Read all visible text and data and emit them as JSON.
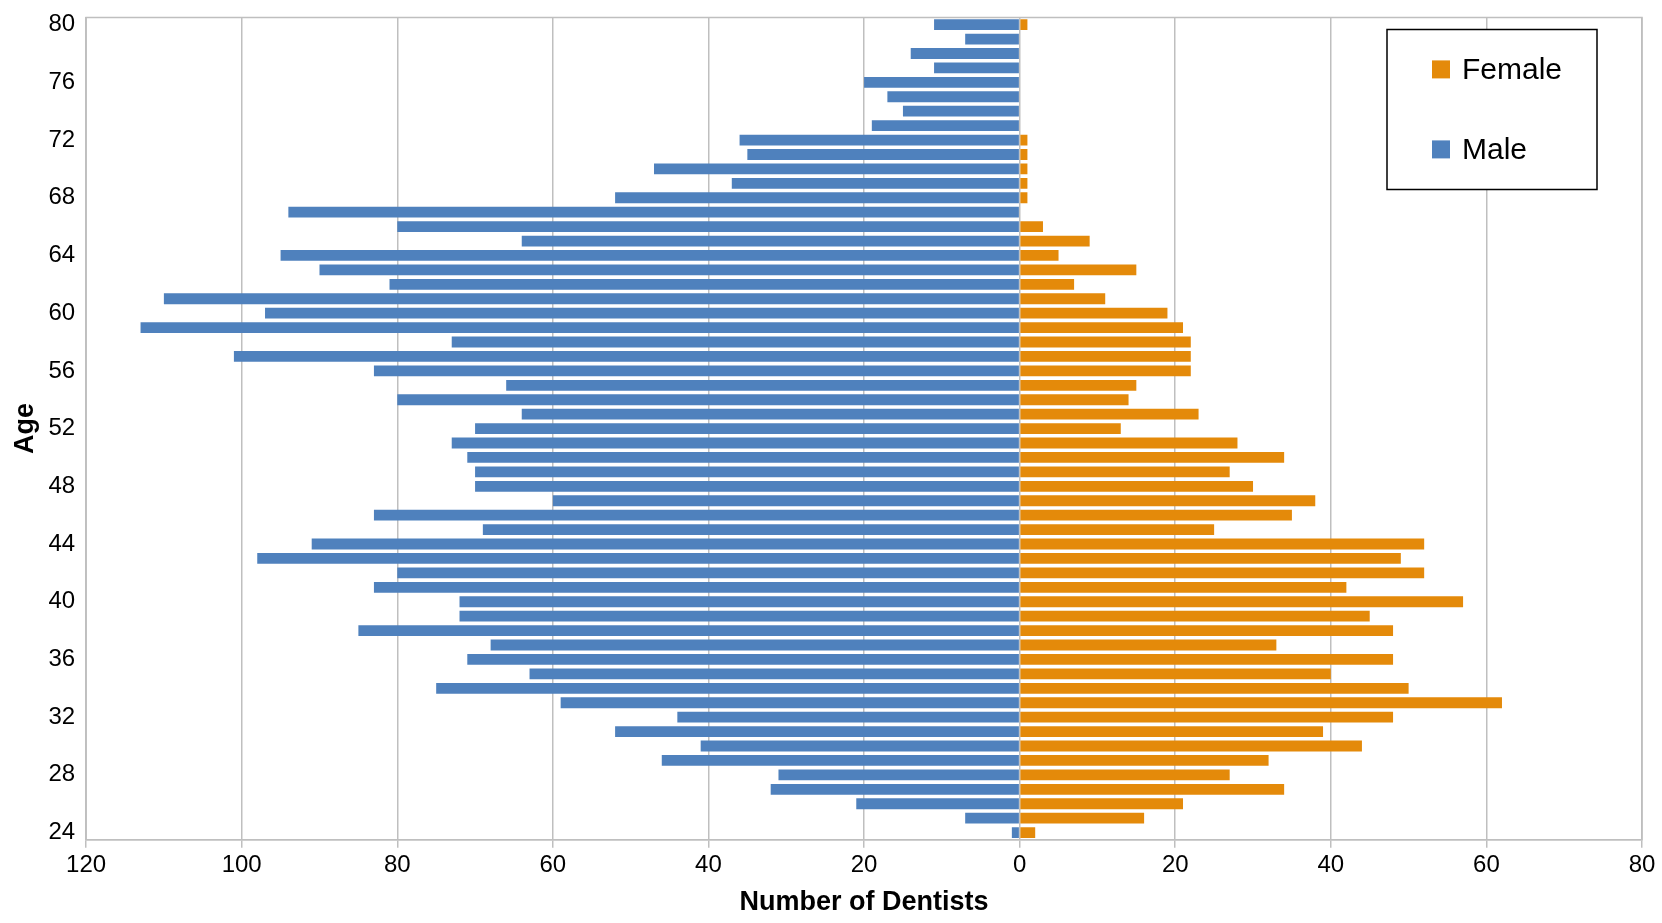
{
  "chart_data": {
    "type": "bar",
    "orientation": "horizontal",
    "stacked": true,
    "xlabel": "Number of Dentists",
    "ylabel": "Age",
    "categories": [
      "80",
      null,
      null,
      null,
      "76",
      null,
      null,
      null,
      "72",
      null,
      null,
      null,
      "68",
      null,
      null,
      null,
      "64",
      null,
      null,
      null,
      "60",
      null,
      null,
      null,
      "56",
      null,
      null,
      null,
      "52",
      null,
      null,
      null,
      "48",
      null,
      null,
      null,
      "44",
      null,
      null,
      null,
      "40",
      null,
      null,
      null,
      "36",
      null,
      null,
      null,
      "32",
      null,
      null,
      null,
      "28",
      null,
      null,
      null,
      "24"
    ],
    "series": [
      {
        "name": "Female",
        "color": "#e48a0a",
        "values": [
          1,
          0,
          0,
          0,
          0,
          0,
          0,
          0,
          1,
          1,
          1,
          1,
          1,
          0,
          3,
          9,
          5,
          15,
          7,
          11,
          19,
          21,
          22,
          22,
          22,
          15,
          14,
          23,
          13,
          28,
          34,
          27,
          30,
          38,
          35,
          25,
          52,
          49,
          52,
          42,
          57,
          45,
          48,
          33,
          48,
          40,
          50,
          62,
          48,
          39,
          44,
          32,
          27,
          34,
          21,
          16,
          2
        ]
      },
      {
        "name": "Male",
        "color": "#4f81bd",
        "values": [
          -11,
          -7,
          -14,
          -11,
          -20,
          -17,
          -15,
          -19,
          -36,
          -35,
          -47,
          -37,
          -52,
          -94,
          -80,
          -64,
          -95,
          -90,
          -81,
          -110,
          -97,
          -113,
          -73,
          -101,
          -83,
          -66,
          -80,
          -64,
          -70,
          -73,
          -71,
          -70,
          -70,
          -60,
          -83,
          -69,
          -91,
          -98,
          -80,
          -83,
          -72,
          -72,
          -85,
          -68,
          -71,
          -63,
          -75,
          -59,
          -44,
          -52,
          -41,
          -46,
          -31,
          -32,
          -21,
          -7,
          -1
        ]
      }
    ],
    "xlim": [
      -120,
      80
    ],
    "xticks": [
      {
        "value": -120,
        "label": "120"
      },
      {
        "value": -100,
        "label": "100"
      },
      {
        "value": -80,
        "label": "80"
      },
      {
        "value": -60,
        "label": "60"
      },
      {
        "value": -40,
        "label": "40"
      },
      {
        "value": -20,
        "label": "20"
      },
      0,
      20,
      40,
      60,
      80
    ],
    "grid": "x",
    "legend": "top right"
  }
}
